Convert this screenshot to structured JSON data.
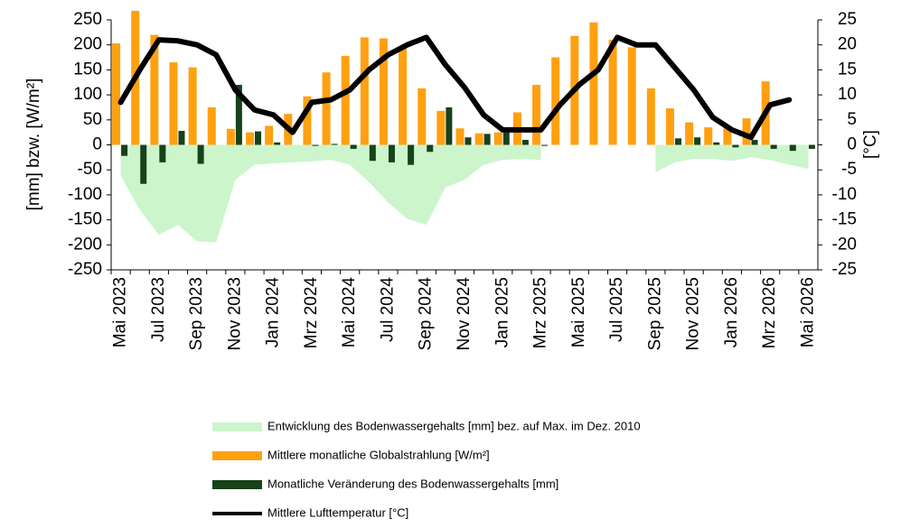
{
  "chart_data": {
    "type": "bar",
    "y_label": "[mm] bzw. [W/m²]",
    "y2_label": "[°C]",
    "categories": [
      "Mai 2023",
      null,
      "Jul 2023",
      null,
      "Sep 2023",
      null,
      "Nov 2023",
      null,
      "Jan 2024",
      null,
      "Mrz 2024",
      null,
      "Mai 2024",
      null,
      "Jul 2024",
      null,
      "Sep 2024",
      null,
      "Nov 2024",
      null,
      "Jan 2025",
      null,
      "Mrz 2025",
      null,
      "Mai 2025",
      null,
      "Jul 2025",
      null,
      "Sep 2025",
      null,
      "Nov 2025",
      null,
      "Jan 2026",
      null,
      "Mrz 2026",
      null,
      "Mai 2026"
    ],
    "ylim": [
      -250,
      250
    ],
    "yticks": [
      -250,
      -200,
      -150,
      -100,
      -50,
      0,
      50,
      100,
      150,
      200,
      250
    ],
    "y2lim": [
      -25,
      25
    ],
    "y2ticks": [
      -25,
      -20,
      -15,
      -10,
      -5,
      0,
      5,
      10,
      15,
      20,
      25
    ],
    "series": [
      {
        "name": "Entwicklung des Bodenwassergehalts [mm] bez. auf Max. im Dez. 2010",
        "kind": "area",
        "color": "#ccf5cc",
        "values": [
          -62,
          -130,
          -180,
          -160,
          -193,
          -195,
          -70,
          -40,
          -37,
          -35,
          -33,
          -30,
          -40,
          -75,
          -115,
          -148,
          -160,
          -85,
          -70,
          -40,
          -30,
          -28,
          -30,
          null,
          null,
          null,
          null,
          null,
          -55,
          -35,
          -28,
          -28,
          -32,
          -25,
          -30,
          -40,
          -48
        ]
      },
      {
        "name": "Mittlere monatliche Globalstrahlung [W/m²]",
        "kind": "bar",
        "color": "#ffa010",
        "values": [
          203,
          268,
          220,
          165,
          155,
          75,
          32,
          25,
          38,
          62,
          97,
          145,
          178,
          215,
          213,
          195,
          113,
          68,
          33,
          23,
          25,
          65,
          120,
          175,
          218,
          245,
          210,
          195,
          113,
          73,
          45,
          35,
          33,
          53,
          127,
          null,
          null
        ]
      },
      {
        "name": "Monatliche Veränderung des Bodenwassergehalts [mm]",
        "kind": "bar",
        "color": "#17421a",
        "values": [
          -22,
          -78,
          -35,
          28,
          -38,
          0,
          120,
          27,
          5,
          0,
          -2,
          2,
          -8,
          -32,
          -35,
          -40,
          -14,
          75,
          15,
          22,
          25,
          10,
          -2,
          0,
          0,
          0,
          0,
          0,
          0,
          13,
          15,
          5,
          -5,
          10,
          -8,
          -12,
          -8
        ]
      },
      {
        "name": "Mittlere Lufttemperatur [°C]",
        "kind": "line",
        "color": "#000000",
        "axis": "y2",
        "values": [
          8.5,
          15,
          21,
          20.8,
          20,
          18,
          11,
          7,
          6,
          2.5,
          8.5,
          9,
          11,
          15,
          18,
          20,
          21.5,
          16,
          11.5,
          6,
          3,
          3,
          3,
          8,
          12,
          15,
          21.5,
          20,
          20,
          15.5,
          11,
          5.5,
          3,
          1.5,
          8,
          9,
          null
        ]
      }
    ]
  }
}
